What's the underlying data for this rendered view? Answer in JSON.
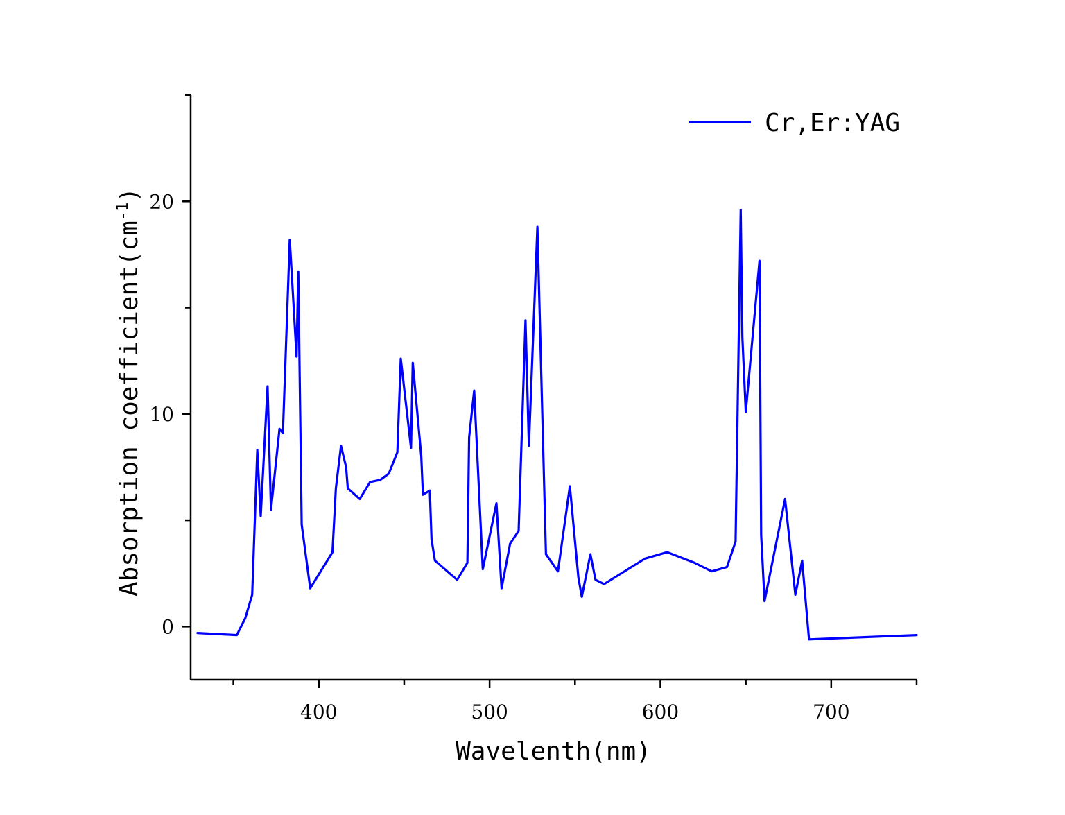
{
  "chart_data": {
    "type": "line",
    "xlabel": "Wavelenth(nm)",
    "ylabel": "Absorption coefficient(cm",
    "ylabel_sup": "-1",
    "ylabel_close": ")",
    "xlim": [
      325,
      750
    ],
    "ylim": [
      -2.5,
      25
    ],
    "x_ticks": [
      400,
      500,
      600,
      700
    ],
    "y_ticks": [
      0,
      10,
      20
    ],
    "grid": false,
    "legend_position": "top-right",
    "series": [
      {
        "name": "Cr,Er:YAG",
        "color": "#0000ff",
        "x": [
          329,
          352,
          357,
          361,
          364,
          366,
          370,
          372,
          377,
          379,
          383,
          387,
          388,
          390,
          395,
          408,
          410,
          413,
          416,
          417,
          424,
          430,
          436,
          441,
          446,
          448,
          454,
          455,
          460,
          461,
          465,
          466,
          468,
          481,
          487,
          488,
          491,
          496,
          504,
          507,
          512,
          517,
          521,
          523,
          528,
          533,
          540,
          547,
          552,
          554,
          559,
          562,
          567,
          591,
          604,
          620,
          630,
          639,
          644,
          647,
          648,
          650,
          658,
          659,
          661,
          673,
          679,
          683,
          687,
          750
        ],
        "y": [
          -0.3,
          -0.4,
          0.4,
          1.5,
          8.3,
          5.2,
          11.3,
          5.5,
          9.3,
          9.1,
          18.2,
          12.7,
          16.7,
          4.8,
          1.8,
          3.5,
          6.5,
          8.5,
          7.5,
          6.5,
          6.0,
          6.8,
          6.9,
          7.2,
          8.2,
          12.6,
          8.4,
          12.4,
          8.0,
          6.2,
          6.4,
          4.1,
          3.1,
          2.2,
          3.0,
          8.9,
          11.1,
          2.7,
          5.8,
          1.8,
          3.9,
          4.5,
          14.4,
          8.5,
          18.8,
          3.4,
          2.6,
          6.6,
          2.3,
          1.4,
          3.4,
          2.2,
          2.0,
          3.2,
          3.5,
          3.0,
          2.6,
          2.8,
          4.0,
          19.6,
          13.6,
          10.1,
          17.2,
          4.3,
          1.2,
          6.0,
          1.5,
          3.1,
          -0.6,
          -0.4
        ]
      }
    ]
  }
}
